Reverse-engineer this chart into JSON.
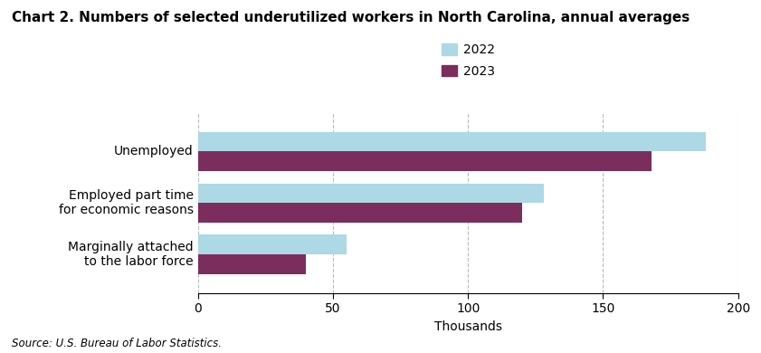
{
  "title": "Chart 2. Numbers of selected underutilized workers in North Carolina, annual averages",
  "title_fontsize": 11,
  "categories": [
    "Marginally attached\nto the labor force",
    "Employed part time\nfor economic reasons",
    "Unemployed"
  ],
  "values_2022": [
    55,
    128,
    188
  ],
  "values_2023": [
    40,
    120,
    168
  ],
  "color_2022": "#add8e6",
  "color_2023": "#7b2d5e",
  "xlabel": "Thousands",
  "xlim": [
    0,
    200
  ],
  "xticks": [
    0,
    50,
    100,
    150,
    200
  ],
  "legend_labels": [
    "2022",
    "2023"
  ],
  "source_text": "Source: U.S. Bureau of Labor Statistics.",
  "bar_height": 0.38,
  "grid_color": "#bbbbbb",
  "background_color": "#ffffff"
}
